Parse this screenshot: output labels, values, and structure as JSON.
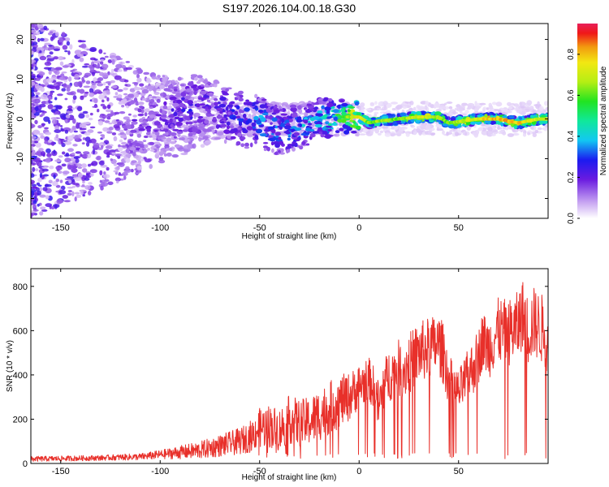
{
  "title": "S197.2026.104.00.18.G30",
  "chart_data": [
    {
      "type": "heatmap",
      "name": "spectrogram",
      "xlabel": "Height of straight line (km)",
      "ylabel": "Frequency (Hz)",
      "xlim": [
        -165,
        95
      ],
      "ylim": [
        -25,
        24
      ],
      "xticks": [
        -150,
        -100,
        -50,
        0,
        50
      ],
      "yticks": [
        -20,
        -10,
        0,
        10,
        20
      ],
      "xtick_labels": [
        "-150",
        "-100",
        "-50",
        "0",
        "50"
      ],
      "ytick_labels": [
        "-20",
        "-10",
        "0",
        "10",
        "20"
      ],
      "colorbar": {
        "label": "Normalized spectral amplitude",
        "range": [
          0.0,
          0.95
        ],
        "ticks": [
          0.0,
          0.2,
          0.4,
          0.6,
          0.8
        ],
        "tick_labels": [
          "0.0",
          "0.2",
          "0.4",
          "0.6",
          "0.8"
        ]
      },
      "ridge": [
        {
          "x": -165,
          "freq": 3,
          "amp": 0.05
        },
        {
          "x": -120,
          "freq": 2,
          "amp": 0.1
        },
        {
          "x": -115,
          "freq": -2,
          "amp": 0.2
        },
        {
          "x": -100,
          "freq": 0,
          "amp": 0.2
        },
        {
          "x": -85,
          "freq": 3,
          "amp": 0.28
        },
        {
          "x": -75,
          "freq": 3,
          "amp": 0.25
        },
        {
          "x": -60,
          "freq": 0,
          "amp": 0.3
        },
        {
          "x": -50,
          "freq": -1,
          "amp": 0.4
        },
        {
          "x": -40,
          "freq": -3,
          "amp": 0.35
        },
        {
          "x": -30,
          "freq": -2,
          "amp": 0.4
        },
        {
          "x": -20,
          "freq": 0,
          "amp": 0.45
        },
        {
          "x": -10,
          "freq": 0.5,
          "amp": 0.6
        },
        {
          "x": 0,
          "freq": 0.5,
          "amp": 0.85
        },
        {
          "x": 5,
          "freq": -1,
          "amp": 0.7
        },
        {
          "x": 10,
          "freq": -0.5,
          "amp": 0.75
        },
        {
          "x": 20,
          "freq": 0,
          "amp": 0.7
        },
        {
          "x": 30,
          "freq": 0.5,
          "amp": 0.8
        },
        {
          "x": 40,
          "freq": 0.5,
          "amp": 0.75
        },
        {
          "x": 45,
          "freq": -1,
          "amp": 0.7
        },
        {
          "x": 60,
          "freq": 0,
          "amp": 0.85
        },
        {
          "x": 70,
          "freq": 0,
          "amp": 0.9
        },
        {
          "x": 80,
          "freq": -1,
          "amp": 0.9
        },
        {
          "x": 90,
          "freq": 0,
          "amp": 0.8
        }
      ]
    },
    {
      "type": "line",
      "name": "snr",
      "xlabel": "Height of straight line (km)",
      "ylabel": "SNR (10 * v/v)",
      "xlim": [
        -165,
        95
      ],
      "ylim": [
        0,
        880
      ],
      "xticks": [
        -150,
        -100,
        -50,
        0,
        50
      ],
      "yticks": [
        0,
        200,
        400,
        600,
        800
      ],
      "xtick_labels": [
        "-150",
        "-100",
        "-50",
        "0",
        "50"
      ],
      "ytick_labels": [
        "0",
        "200",
        "400",
        "600",
        "800"
      ],
      "color": "#e8302a",
      "series": [
        {
          "name": "SNR",
          "x": [
            -165,
            -150,
            -130,
            -120,
            -110,
            -100,
            -90,
            -80,
            -70,
            -60,
            -55,
            -50,
            -45,
            -40,
            -35,
            -30,
            -25,
            -20,
            -15,
            -10,
            -5,
            0,
            5,
            8,
            10,
            12,
            15,
            20,
            22,
            25,
            28,
            30,
            35,
            40,
            43,
            45,
            48,
            50,
            55,
            60,
            62,
            65,
            70,
            75,
            80,
            82,
            85,
            88,
            90,
            93,
            95
          ],
          "y": [
            20,
            22,
            25,
            28,
            30,
            40,
            50,
            60,
            80,
            100,
            120,
            160,
            170,
            150,
            200,
            180,
            190,
            220,
            250,
            280,
            300,
            350,
            380,
            330,
            250,
            340,
            400,
            430,
            420,
            450,
            480,
            500,
            520,
            540,
            480,
            380,
            340,
            320,
            400,
            480,
            560,
            520,
            600,
            590,
            620,
            680,
            600,
            640,
            620,
            600,
            560
          ],
          "spread": [
            12,
            12,
            12,
            14,
            15,
            20,
            30,
            40,
            50,
            60,
            70,
            90,
            100,
            100,
            110,
            110,
            110,
            120,
            120,
            120,
            110,
            100,
            100,
            100,
            120,
            120,
            120,
            130,
            130,
            140,
            140,
            140,
            140,
            140,
            140,
            120,
            100,
            100,
            120,
            130,
            130,
            140,
            150,
            150,
            160,
            160,
            160,
            160,
            160,
            160,
            160
          ]
        }
      ]
    }
  ]
}
